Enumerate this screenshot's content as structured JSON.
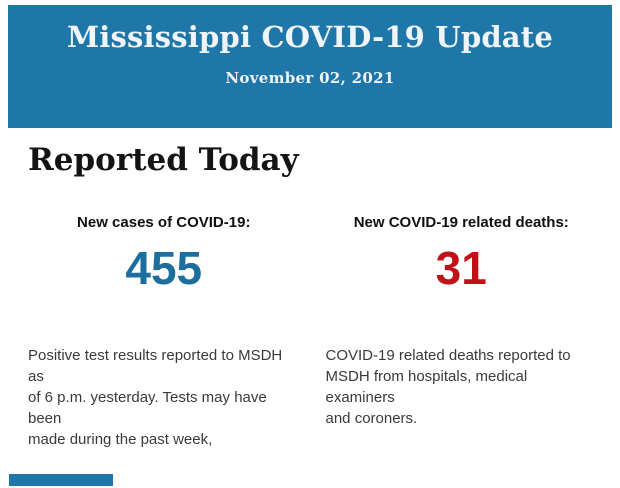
{
  "colors": {
    "header_background": "#1F76A8",
    "header_text": "#EFF5F9",
    "heading_text": "#141414",
    "new_cases_value": "#1D6E9E",
    "deaths_value": "#C01119",
    "body_text": "#3A3A3A"
  },
  "header": {
    "title": "Mississippi COVID-19 Update",
    "date": "November 02, 2021"
  },
  "main": {
    "section_title": "Reported Today",
    "stats": [
      {
        "label": "New cases of COVID-19:",
        "value": "455",
        "description": "Positive test results reported to MSDH as\nof 6 p.m. yesterday. Tests may have been\nmade during the past week,"
      },
      {
        "label": "New COVID-19 related deaths:",
        "value": "31",
        "description": "COVID-19 related deaths reported to\nMSDH from hospitals, medical examiners\nand coroners."
      }
    ]
  }
}
